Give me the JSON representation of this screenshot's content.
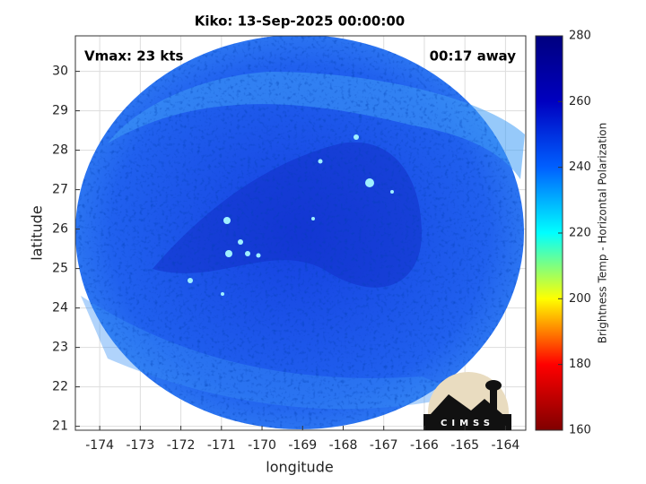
{
  "chart_data": {
    "type": "image",
    "title": "Kiko: 13-Sep-2025 00:00:00",
    "annotations": [
      "Vmax: 23 kts",
      "00:17 away"
    ],
    "xlabel": "longitude",
    "ylabel": "latitude",
    "xlim": [
      -174.6,
      -163.5
    ],
    "xticks": [
      -174,
      -173,
      -172,
      -171,
      -170,
      -169,
      -168,
      -167,
      -166,
      -165,
      -164
    ],
    "ylim": [
      20.9,
      30.9
    ],
    "yticks": [
      21,
      22,
      23,
      24,
      25,
      26,
      27,
      28,
      29,
      30
    ],
    "grid": true,
    "colorbar": {
      "label": "Brightness Temp - Horizontal Polarization",
      "lim": [
        160,
        280
      ],
      "ticks": [
        160,
        180,
        200,
        220,
        240,
        260,
        280
      ],
      "colormap": [
        "#800000",
        "#ff0000",
        "#ffff00",
        "#00ffff",
        "#0060ff",
        "#0000c0",
        "#00007f"
      ]
    },
    "logo": "CIMSS"
  }
}
